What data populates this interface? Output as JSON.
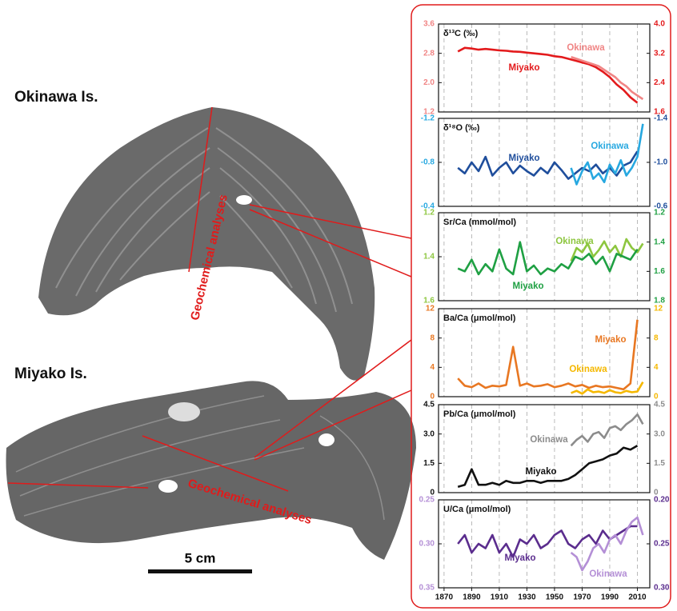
{
  "labels": {
    "okinawa": "Okinawa Is.",
    "miyako": "Miyako Is.",
    "analyses": "Geochemical analyses",
    "scale": "5 cm"
  },
  "chart_data": [
    {
      "type": "line",
      "title": "δ¹³C (‰)",
      "xlim": [
        1866,
        2019
      ],
      "grid": true,
      "ylim": [
        1.2,
        3.6
      ],
      "yticks": [
        1.2,
        {
          "value": 2,
          "label": "2.0"
        },
        2.8,
        3.6
      ],
      "y2lim": [
        1.6,
        4.0
      ],
      "y2ticks": [
        1.6,
        2.4,
        3.2,
        {
          "value": 4,
          "label": "4.0"
        }
      ],
      "series": [
        {
          "name": "Miyako",
          "color": "#e31a1c",
          "axis": "y2",
          "x": [
            1880,
            1885,
            1890,
            1895,
            1900,
            1905,
            1910,
            1915,
            1920,
            1925,
            1930,
            1935,
            1940,
            1945,
            1950,
            1955,
            1960,
            1965,
            1970,
            1975,
            1980,
            1985,
            1990,
            1995,
            2000,
            2005,
            2010
          ],
          "values": [
            3.25,
            3.35,
            3.33,
            3.3,
            3.32,
            3.3,
            3.28,
            3.27,
            3.25,
            3.24,
            3.22,
            3.2,
            3.18,
            3.16,
            3.12,
            3.1,
            3.05,
            3.0,
            2.95,
            2.9,
            2.82,
            2.7,
            2.55,
            2.35,
            2.2,
            2.0,
            1.85
          ]
        },
        {
          "name": "Okinawa",
          "color": "#f08585",
          "x": [
            1962,
            1966,
            1970,
            1974,
            1978,
            1982,
            1986,
            1990,
            1994,
            1998,
            2002,
            2006,
            2010,
            2014
          ],
          "values": [
            2.7,
            2.65,
            2.6,
            2.55,
            2.5,
            2.45,
            2.35,
            2.25,
            2.15,
            2.0,
            1.9,
            1.75,
            1.65,
            1.55
          ]
        }
      ]
    },
    {
      "type": "line",
      "title": "δ¹⁸O (‰)",
      "xlim": [
        1866,
        2019
      ],
      "grid": true,
      "ylim": [
        -0.4,
        -1.2
      ],
      "yticks": [
        -1.2,
        -0.8,
        -0.4
      ],
      "y2lim": [
        -0.6,
        -1.4
      ],
      "y2ticks": [
        -1.4,
        {
          "value": -1,
          "label": "-1.0"
        },
        -0.6
      ],
      "series": [
        {
          "name": "Miyako",
          "color": "#1f4e9c",
          "axis": "y2",
          "x": [
            1880,
            1885,
            1890,
            1895,
            1900,
            1905,
            1910,
            1915,
            1920,
            1925,
            1930,
            1935,
            1940,
            1945,
            1950,
            1955,
            1960,
            1965,
            1970,
            1975,
            1980,
            1985,
            1990,
            1995,
            2000,
            2005,
            2010
          ],
          "values": [
            -0.95,
            -0.9,
            -1.0,
            -0.92,
            -1.05,
            -0.88,
            -0.95,
            -1.0,
            -0.9,
            -0.97,
            -0.92,
            -0.88,
            -0.95,
            -0.9,
            -1.0,
            -0.93,
            -0.85,
            -0.9,
            -0.95,
            -0.92,
            -0.98,
            -0.9,
            -0.95,
            -0.88,
            -0.97,
            -1.0,
            -1.1
          ]
        },
        {
          "name": "Okinawa",
          "color": "#27a8e0",
          "x": [
            1962,
            1966,
            1970,
            1974,
            1978,
            1982,
            1986,
            1990,
            1994,
            1998,
            2002,
            2006,
            2010,
            2014
          ],
          "values": [
            -0.75,
            -0.6,
            -0.72,
            -0.8,
            -0.65,
            -0.7,
            -0.62,
            -0.78,
            -0.7,
            -0.82,
            -0.68,
            -0.75,
            -0.85,
            -1.15
          ]
        }
      ]
    },
    {
      "type": "line",
      "title": "Sr/Ca (mmol/mol)",
      "xlim": [
        1866,
        2019
      ],
      "grid": true,
      "ylim": [
        1.6,
        1.2
      ],
      "yticks": [
        1.2,
        1.4,
        1.6
      ],
      "y2lim": [
        1.8,
        1.2
      ],
      "y2ticks": [
        1.2,
        1.4,
        1.6,
        1.8
      ],
      "series": [
        {
          "name": "Okinawa",
          "color": "#8dc63f",
          "x": [
            1962,
            1966,
            1970,
            1974,
            1978,
            1982,
            1986,
            1990,
            1994,
            1998,
            2002,
            2006,
            2010,
            2014
          ],
          "values": [
            1.42,
            1.36,
            1.38,
            1.34,
            1.4,
            1.37,
            1.33,
            1.38,
            1.35,
            1.4,
            1.32,
            1.36,
            1.38,
            1.34
          ]
        },
        {
          "name": "Miyako",
          "color": "#1fa043",
          "axis": "y2",
          "x": [
            1880,
            1885,
            1890,
            1895,
            1900,
            1905,
            1910,
            1915,
            1920,
            1925,
            1930,
            1935,
            1940,
            1945,
            1950,
            1955,
            1960,
            1965,
            1970,
            1975,
            1980,
            1985,
            1990,
            1995,
            2000,
            2005,
            2010
          ],
          "values": [
            1.58,
            1.6,
            1.52,
            1.62,
            1.55,
            1.6,
            1.45,
            1.58,
            1.62,
            1.4,
            1.6,
            1.56,
            1.62,
            1.58,
            1.6,
            1.55,
            1.58,
            1.5,
            1.52,
            1.48,
            1.55,
            1.5,
            1.6,
            1.48,
            1.5,
            1.52,
            1.45
          ]
        }
      ]
    },
    {
      "type": "line",
      "title": "Ba/Ca (μmol/mol)",
      "xlim": [
        1866,
        2019
      ],
      "grid": true,
      "ylim": [
        0,
        12
      ],
      "yticks": [
        0,
        4,
        8,
        12
      ],
      "y2lim": [
        0,
        12
      ],
      "y2ticks": [
        0,
        4,
        8,
        12
      ],
      "series": [
        {
          "name": "Miyako",
          "color": "#e87722",
          "x": [
            1880,
            1885,
            1890,
            1895,
            1900,
            1905,
            1910,
            1915,
            1920,
            1925,
            1930,
            1935,
            1940,
            1945,
            1950,
            1955,
            1960,
            1965,
            1970,
            1975,
            1980,
            1985,
            1990,
            1995,
            2000,
            2005,
            2010
          ],
          "values": [
            2.5,
            1.5,
            1.3,
            1.8,
            1.2,
            1.5,
            1.4,
            1.6,
            6.8,
            1.5,
            1.8,
            1.4,
            1.5,
            1.7,
            1.3,
            1.5,
            1.8,
            1.4,
            1.6,
            1.2,
            1.5,
            1.3,
            1.4,
            1.2,
            1.0,
            1.8,
            10.5
          ]
        },
        {
          "name": "Okinawa",
          "color": "#f5b800",
          "axis": "y2",
          "x": [
            1962,
            1966,
            1970,
            1974,
            1978,
            1982,
            1986,
            1990,
            1994,
            1998,
            2002,
            2006,
            2010,
            2014
          ],
          "values": [
            0.5,
            0.8,
            0.4,
            1.0,
            0.6,
            0.7,
            0.5,
            0.9,
            0.6,
            0.5,
            0.8,
            0.6,
            0.7,
            2.0
          ]
        }
      ]
    },
    {
      "type": "line",
      "title": "Pb/Ca (μmol/mol)",
      "xlim": [
        1866,
        2019
      ],
      "grid": true,
      "ylim": [
        0,
        4.5
      ],
      "yticks": [
        0,
        1.5,
        {
          "value": 3,
          "label": "3.0"
        },
        4.5
      ],
      "y2lim": [
        0,
        4.5
      ],
      "y2ticks": [
        0,
        1.5,
        {
          "value": 3,
          "label": "3.0"
        },
        4.5
      ],
      "series": [
        {
          "name": "Okinawa",
          "color": "#8c8c8c",
          "axis": "y2",
          "x": [
            1962,
            1966,
            1970,
            1974,
            1978,
            1982,
            1986,
            1990,
            1994,
            1998,
            2002,
            2006,
            2010,
            2014
          ],
          "values": [
            2.4,
            2.7,
            2.9,
            2.6,
            3.0,
            3.1,
            2.8,
            3.3,
            3.4,
            3.2,
            3.5,
            3.7,
            4.0,
            3.5
          ]
        },
        {
          "name": "Miyako",
          "color": "#111111",
          "x": [
            1880,
            1885,
            1890,
            1895,
            1900,
            1905,
            1910,
            1915,
            1920,
            1925,
            1930,
            1935,
            1940,
            1945,
            1950,
            1955,
            1960,
            1965,
            1970,
            1975,
            1980,
            1985,
            1990,
            1995,
            2000,
            2005,
            2010
          ],
          "values": [
            0.3,
            0.4,
            1.2,
            0.4,
            0.4,
            0.5,
            0.4,
            0.6,
            0.5,
            0.5,
            0.6,
            0.6,
            0.5,
            0.6,
            0.6,
            0.6,
            0.7,
            0.9,
            1.2,
            1.5,
            1.6,
            1.7,
            1.9,
            2.0,
            2.3,
            2.2,
            2.4
          ]
        }
      ]
    },
    {
      "type": "line",
      "title": "U/Ca (μmol/mol)",
      "xlim": [
        1866,
        2019
      ],
      "grid": true,
      "xticks": [
        1870,
        1890,
        1910,
        1930,
        1950,
        1970,
        1990,
        2010
      ],
      "ylim": [
        0.35,
        0.25
      ],
      "yticks": [
        0.25,
        {
          "value": 0.3,
          "label": "0.30"
        },
        0.35
      ],
      "y2lim": [
        0.3,
        0.2
      ],
      "y2ticks": [
        {
          "value": 0.2,
          "label": "0.20"
        },
        0.25,
        {
          "value": 0.3,
          "label": "0.30"
        }
      ],
      "series": [
        {
          "name": "Miyako",
          "color": "#5b2d8e",
          "axis": "y2",
          "x": [
            1880,
            1885,
            1890,
            1895,
            1900,
            1905,
            1910,
            1915,
            1920,
            1925,
            1930,
            1935,
            1940,
            1945,
            1950,
            1955,
            1960,
            1965,
            1970,
            1975,
            1980,
            1985,
            1990,
            1995,
            2000,
            2005,
            2010
          ],
          "values": [
            0.25,
            0.24,
            0.26,
            0.25,
            0.255,
            0.24,
            0.26,
            0.25,
            0.265,
            0.245,
            0.25,
            0.24,
            0.255,
            0.25,
            0.24,
            0.235,
            0.25,
            0.255,
            0.245,
            0.24,
            0.25,
            0.235,
            0.245,
            0.24,
            0.235,
            0.23,
            0.23
          ]
        },
        {
          "name": "Okinawa",
          "color": "#b48fd6",
          "x": [
            1962,
            1966,
            1970,
            1974,
            1978,
            1982,
            1986,
            1990,
            1994,
            1998,
            2002,
            2006,
            2010,
            2014
          ],
          "values": [
            0.31,
            0.315,
            0.33,
            0.32,
            0.305,
            0.3,
            0.31,
            0.295,
            0.29,
            0.3,
            0.285,
            0.275,
            0.27,
            0.29
          ]
        }
      ]
    }
  ]
}
